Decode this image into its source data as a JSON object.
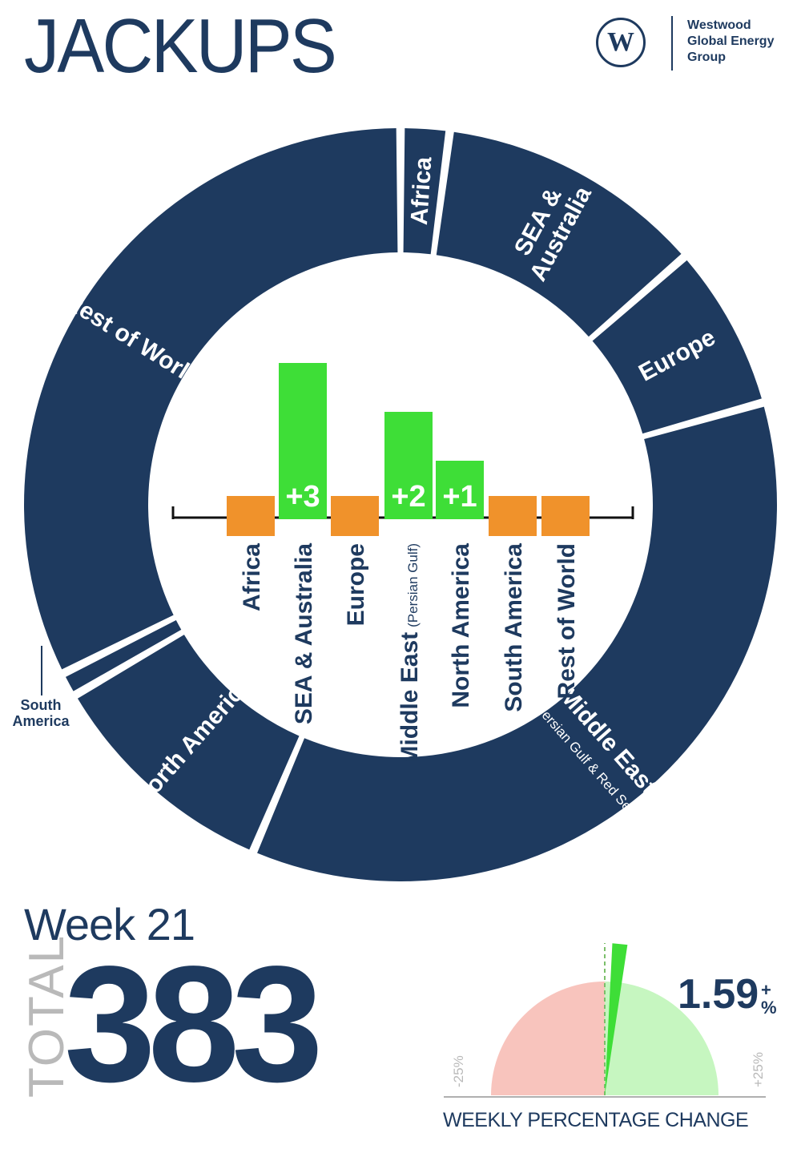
{
  "page": {
    "title": "JACKUPS"
  },
  "logo": {
    "mark": "W",
    "lines": [
      "Westwood",
      "Global Energy",
      "Group"
    ]
  },
  "colors": {
    "navy": "#1e3a5f",
    "orange": "#f0922b",
    "green": "#3ede37",
    "pink": "#f8c4bd",
    "lightgreen": "#c6f6c0",
    "grey": "#b9b9b9"
  },
  "chart_data": [
    {
      "type": "pie",
      "variant": "donut",
      "categories": [
        "Africa",
        "SEA & Australia",
        "Europe",
        "Middle East",
        "North America",
        "South America",
        "Rest of World"
      ],
      "ring_labels": {
        "Africa": "Africa",
        "SEA & Australia": [
          "SEA &",
          "Australia"
        ],
        "Europe": "Europe",
        "Middle East": "Middle East",
        "Middle East_sub": "(Persian Gulf & Red Sea)",
        "North America": "North America",
        "South America": "South America",
        "Rest of World": "Rest of World"
      },
      "values": [
        8,
        44,
        27,
        137,
        39,
        4,
        124
      ],
      "start_angle_deg": 0
    },
    {
      "type": "bar",
      "title": "",
      "categories": [
        "Africa",
        "SEA & Australia",
        "Europe",
        "Middle East",
        "North America",
        "South America",
        "Rest of World"
      ],
      "category_sub": {
        "Middle East": "(Persian Gulf)"
      },
      "values": [
        0,
        3,
        0,
        2,
        1,
        0,
        0
      ],
      "value_labels": [
        "",
        "+3",
        "",
        "+2",
        "+1",
        "",
        ""
      ],
      "ylim": [
        -1,
        6
      ]
    }
  ],
  "summary": {
    "week_label": "Week 21",
    "total_label": "TOTAL",
    "total_value": "383"
  },
  "gauge": {
    "percent_change": 1.59,
    "value_label": "1.59",
    "suffix_top": "+",
    "suffix_bottom": "%",
    "min_label": "-25%",
    "max_label": "+25%",
    "range": [
      -25,
      25
    ],
    "caption": "WEEKLY PERCENTAGE CHANGE"
  }
}
